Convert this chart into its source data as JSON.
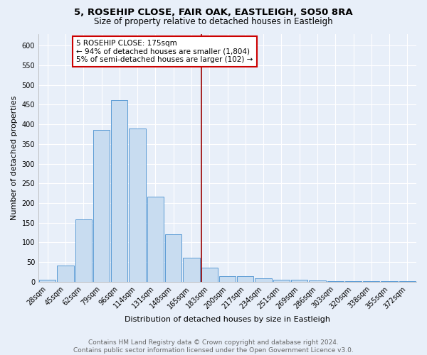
{
  "title": "5, ROSEHIP CLOSE, FAIR OAK, EASTLEIGH, SO50 8RA",
  "subtitle": "Size of property relative to detached houses in Eastleigh",
  "xlabel": "Distribution of detached houses by size in Eastleigh",
  "ylabel": "Number of detached properties",
  "footnote1": "Contains HM Land Registry data © Crown copyright and database right 2024.",
  "footnote2": "Contains public sector information licensed under the Open Government Licence v3.0.",
  "bin_labels": [
    "28sqm",
    "45sqm",
    "62sqm",
    "79sqm",
    "96sqm",
    "114sqm",
    "131sqm",
    "148sqm",
    "165sqm",
    "183sqm",
    "200sqm",
    "217sqm",
    "234sqm",
    "251sqm",
    "269sqm",
    "286sqm",
    "303sqm",
    "320sqm",
    "338sqm",
    "355sqm",
    "372sqm"
  ],
  "bar_heights": [
    5,
    42,
    158,
    385,
    462,
    390,
    217,
    120,
    62,
    35,
    15,
    15,
    8,
    5,
    5,
    3,
    2,
    2,
    2,
    2,
    2
  ],
  "bar_color": "#c8dcf0",
  "bar_edgecolor": "#5b9bd5",
  "vline_color": "#9b0000",
  "annotation_line1": "5 ROSEHIP CLOSE: 175sqm",
  "annotation_line2": "← 94% of detached houses are smaller (1,804)",
  "annotation_line3": "5% of semi-detached houses are larger (102) →",
  "annotation_box_edgecolor": "#cc0000",
  "annotation_box_facecolor": "#ffffff",
  "ylim": [
    0,
    630
  ],
  "yticks": [
    0,
    50,
    100,
    150,
    200,
    250,
    300,
    350,
    400,
    450,
    500,
    550,
    600
  ],
  "background_color": "#e8eff9",
  "grid_color": "#ffffff",
  "title_fontsize": 9.5,
  "subtitle_fontsize": 8.5,
  "xlabel_fontsize": 8,
  "ylabel_fontsize": 8,
  "tick_fontsize": 7,
  "annotation_fontsize": 7.5,
  "footnote_fontsize": 6.5
}
